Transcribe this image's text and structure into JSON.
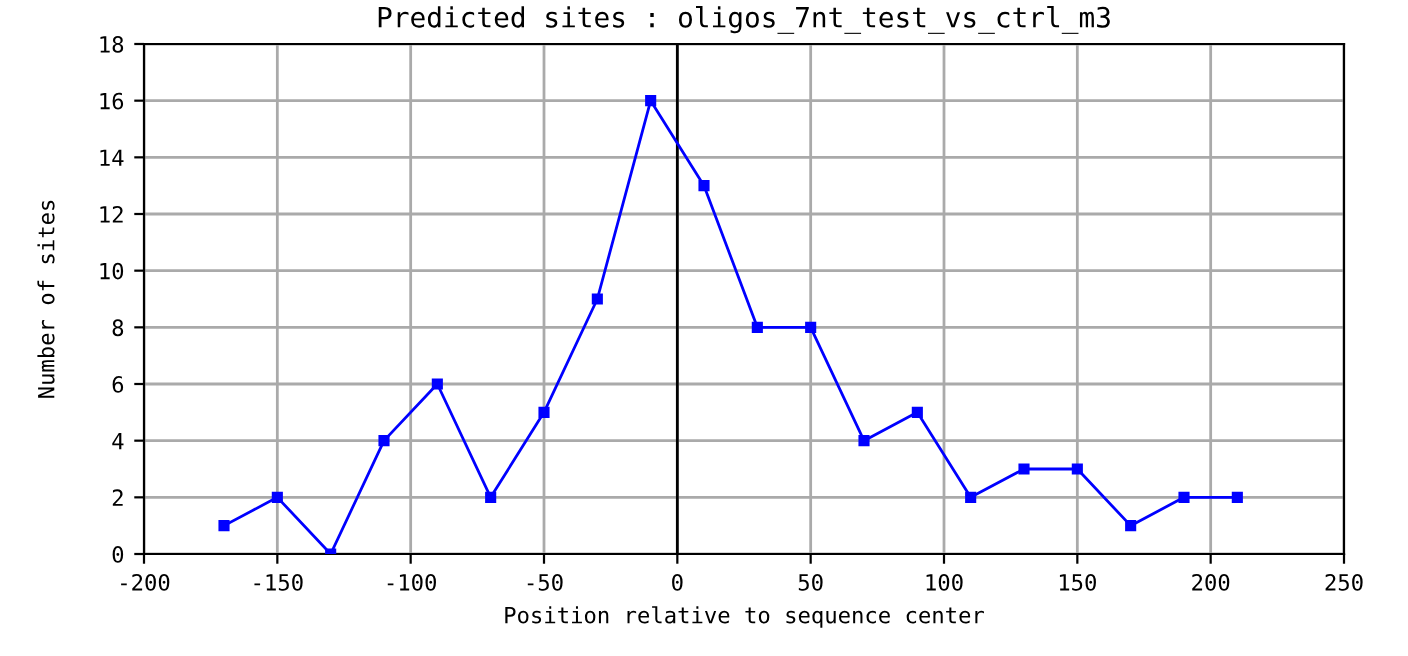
{
  "chart_data": {
    "type": "line",
    "title": "Predicted sites : oligos_7nt_test_vs_ctrl_m3",
    "xlabel": "Position relative to sequence center",
    "ylabel": "Number of sites",
    "x": [
      -170,
      -150,
      -130,
      -110,
      -90,
      -70,
      -50,
      -30,
      -10,
      10,
      30,
      50,
      70,
      90,
      110,
      130,
      150,
      170,
      190,
      210
    ],
    "series": [
      {
        "color": "#0000ff",
        "values": [
          1,
          2,
          0,
          4,
          6,
          2,
          5,
          9,
          16,
          13,
          8,
          8,
          4,
          5,
          2,
          3,
          3,
          1,
          2,
          2
        ]
      }
    ],
    "xlim": [
      -200,
      250
    ],
    "xticks": [
      -200,
      -150,
      -100,
      -50,
      0,
      50,
      100,
      150,
      200,
      250
    ],
    "ylim": [
      0,
      18
    ],
    "yticks": [
      0,
      2,
      4,
      6,
      8,
      10,
      12,
      14,
      16,
      18
    ],
    "ref_lines": [
      {
        "axis": "x",
        "value": 0,
        "color": "#000000"
      }
    ],
    "grid": true,
    "marker": "square",
    "line_style": "solid",
    "legend": false
  }
}
